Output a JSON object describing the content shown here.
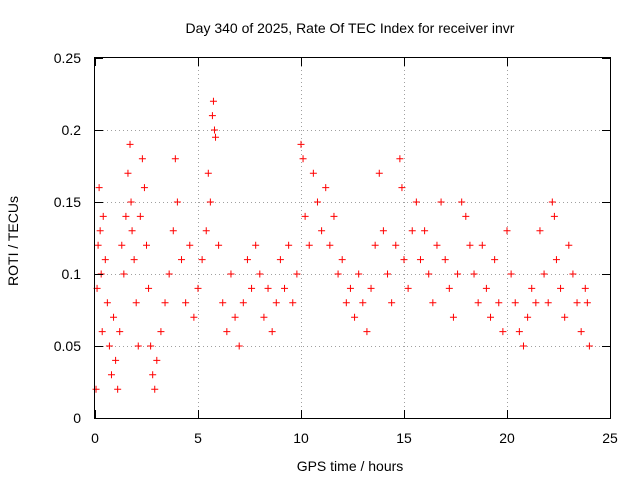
{
  "chart_data": {
    "type": "scatter",
    "title": "Day 340 of 2025, Rate Of TEC Index for receiver invr",
    "xlabel": "GPS time / hours",
    "ylabel": "ROTI / TECUs",
    "xlim": [
      0,
      25
    ],
    "ylim": [
      0,
      0.25
    ],
    "x_ticks": [
      0,
      5,
      10,
      15,
      20,
      25
    ],
    "y_ticks": [
      0,
      0.05,
      0.1,
      0.15,
      0.2,
      0.25
    ],
    "x_tick_labels": [
      "0",
      "5",
      "10",
      "15",
      "20",
      "25"
    ],
    "y_tick_labels": [
      "0",
      "0.05",
      "0.1",
      "0.15",
      "0.2",
      "0.25"
    ],
    "grid": true,
    "marker": "plus",
    "color": "#ff0000",
    "series": [
      {
        "name": "ROTI",
        "points": [
          [
            0.05,
            0.02
          ],
          [
            0.1,
            0.09
          ],
          [
            0.15,
            0.12
          ],
          [
            0.2,
            0.16
          ],
          [
            0.25,
            0.13
          ],
          [
            0.3,
            0.1
          ],
          [
            0.35,
            0.06
          ],
          [
            0.4,
            0.14
          ],
          [
            0.5,
            0.11
          ],
          [
            0.6,
            0.08
          ],
          [
            0.7,
            0.05
          ],
          [
            0.8,
            0.03
          ],
          [
            0.9,
            0.07
          ],
          [
            1.0,
            0.04
          ],
          [
            1.1,
            0.02
          ],
          [
            1.2,
            0.06
          ],
          [
            1.3,
            0.12
          ],
          [
            1.4,
            0.1
          ],
          [
            1.5,
            0.14
          ],
          [
            1.6,
            0.17
          ],
          [
            1.7,
            0.19
          ],
          [
            1.75,
            0.15
          ],
          [
            1.8,
            0.13
          ],
          [
            1.9,
            0.11
          ],
          [
            2.0,
            0.08
          ],
          [
            2.1,
            0.05
          ],
          [
            2.2,
            0.14
          ],
          [
            2.3,
            0.18
          ],
          [
            2.4,
            0.16
          ],
          [
            2.5,
            0.12
          ],
          [
            2.6,
            0.09
          ],
          [
            2.7,
            0.05
          ],
          [
            2.8,
            0.03
          ],
          [
            2.9,
            0.02
          ],
          [
            3.0,
            0.04
          ],
          [
            3.2,
            0.06
          ],
          [
            3.4,
            0.08
          ],
          [
            3.6,
            0.1
          ],
          [
            3.8,
            0.13
          ],
          [
            3.9,
            0.18
          ],
          [
            4.0,
            0.15
          ],
          [
            4.2,
            0.11
          ],
          [
            4.4,
            0.08
          ],
          [
            4.6,
            0.12
          ],
          [
            4.8,
            0.07
          ],
          [
            5.0,
            0.09
          ],
          [
            5.2,
            0.11
          ],
          [
            5.4,
            0.13
          ],
          [
            5.5,
            0.17
          ],
          [
            5.6,
            0.15
          ],
          [
            5.7,
            0.21
          ],
          [
            5.75,
            0.22
          ],
          [
            5.8,
            0.2
          ],
          [
            5.85,
            0.195
          ],
          [
            6.0,
            0.12
          ],
          [
            6.2,
            0.08
          ],
          [
            6.4,
            0.06
          ],
          [
            6.6,
            0.1
          ],
          [
            6.8,
            0.07
          ],
          [
            7.0,
            0.05
          ],
          [
            7.2,
            0.08
          ],
          [
            7.4,
            0.11
          ],
          [
            7.6,
            0.09
          ],
          [
            7.8,
            0.12
          ],
          [
            8.0,
            0.1
          ],
          [
            8.2,
            0.07
          ],
          [
            8.4,
            0.09
          ],
          [
            8.6,
            0.06
          ],
          [
            8.8,
            0.08
          ],
          [
            9.0,
            0.11
          ],
          [
            9.2,
            0.09
          ],
          [
            9.4,
            0.12
          ],
          [
            9.6,
            0.08
          ],
          [
            9.8,
            0.1
          ],
          [
            10.0,
            0.19
          ],
          [
            10.1,
            0.18
          ],
          [
            10.2,
            0.14
          ],
          [
            10.4,
            0.12
          ],
          [
            10.6,
            0.17
          ],
          [
            10.8,
            0.15
          ],
          [
            11.0,
            0.13
          ],
          [
            11.2,
            0.16
          ],
          [
            11.4,
            0.12
          ],
          [
            11.6,
            0.14
          ],
          [
            11.8,
            0.1
          ],
          [
            12.0,
            0.11
          ],
          [
            12.2,
            0.08
          ],
          [
            12.4,
            0.09
          ],
          [
            12.6,
            0.07
          ],
          [
            12.8,
            0.1
          ],
          [
            13.0,
            0.08
          ],
          [
            13.2,
            0.06
          ],
          [
            13.4,
            0.09
          ],
          [
            13.6,
            0.12
          ],
          [
            13.8,
            0.17
          ],
          [
            14.0,
            0.13
          ],
          [
            14.2,
            0.1
          ],
          [
            14.4,
            0.08
          ],
          [
            14.6,
            0.12
          ],
          [
            14.8,
            0.18
          ],
          [
            14.9,
            0.16
          ],
          [
            15.0,
            0.11
          ],
          [
            15.2,
            0.09
          ],
          [
            15.4,
            0.13
          ],
          [
            15.6,
            0.15
          ],
          [
            15.8,
            0.11
          ],
          [
            16.0,
            0.13
          ],
          [
            16.2,
            0.1
          ],
          [
            16.4,
            0.08
          ],
          [
            16.6,
            0.12
          ],
          [
            16.8,
            0.15
          ],
          [
            17.0,
            0.11
          ],
          [
            17.2,
            0.09
          ],
          [
            17.4,
            0.07
          ],
          [
            17.6,
            0.1
          ],
          [
            17.8,
            0.15
          ],
          [
            18.0,
            0.14
          ],
          [
            18.2,
            0.12
          ],
          [
            18.4,
            0.1
          ],
          [
            18.6,
            0.08
          ],
          [
            18.8,
            0.12
          ],
          [
            19.0,
            0.09
          ],
          [
            19.2,
            0.07
          ],
          [
            19.4,
            0.11
          ],
          [
            19.6,
            0.08
          ],
          [
            19.8,
            0.06
          ],
          [
            20.0,
            0.13
          ],
          [
            20.2,
            0.1
          ],
          [
            20.4,
            0.08
          ],
          [
            20.6,
            0.06
          ],
          [
            20.8,
            0.05
          ],
          [
            21.0,
            0.07
          ],
          [
            21.2,
            0.09
          ],
          [
            21.4,
            0.08
          ],
          [
            21.6,
            0.13
          ],
          [
            21.8,
            0.1
          ],
          [
            22.0,
            0.08
          ],
          [
            22.2,
            0.15
          ],
          [
            22.3,
            0.14
          ],
          [
            22.4,
            0.11
          ],
          [
            22.6,
            0.09
          ],
          [
            22.8,
            0.07
          ],
          [
            23.0,
            0.12
          ],
          [
            23.2,
            0.1
          ],
          [
            23.4,
            0.08
          ],
          [
            23.6,
            0.06
          ],
          [
            23.8,
            0.09
          ],
          [
            23.9,
            0.08
          ],
          [
            24.0,
            0.05
          ]
        ]
      }
    ]
  },
  "colors": {
    "marker": "#ff0000",
    "grid": "#a0a0a0",
    "frame": "#000000",
    "background": "#ffffff"
  }
}
